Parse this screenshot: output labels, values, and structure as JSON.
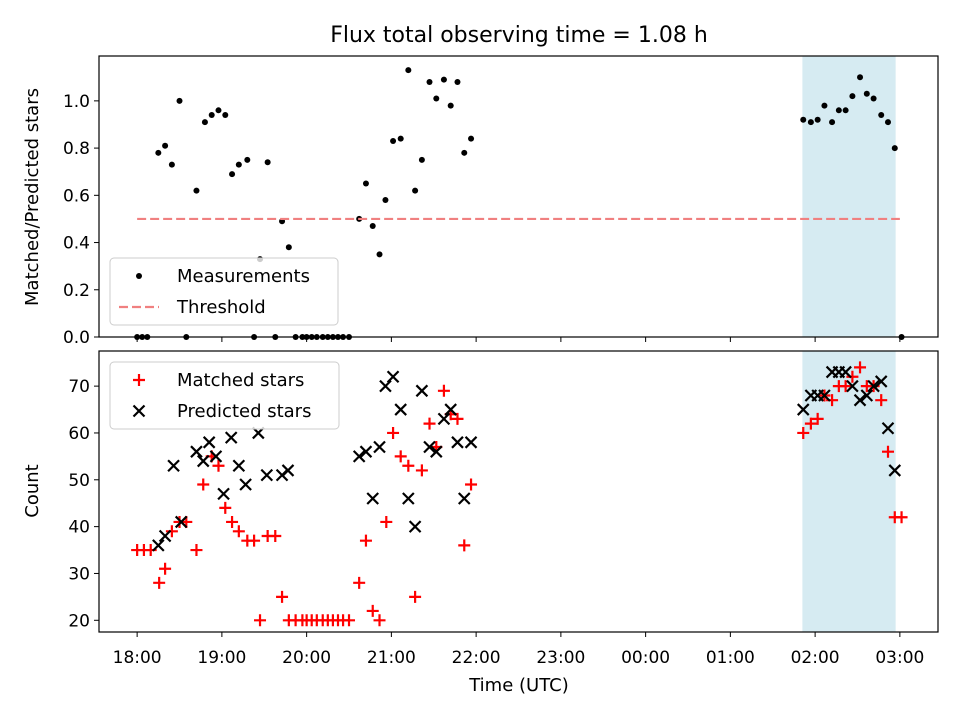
{
  "title": "Flux total observing time = 1.08 h",
  "xlabel": "Time (UTC)",
  "x_tick_labels": [
    "18:00",
    "19:00",
    "20:00",
    "21:00",
    "22:00",
    "23:00",
    "00:00",
    "01:00",
    "02:00",
    "03:00"
  ],
  "colors": {
    "measurements": "#000000",
    "threshold": "#f08080",
    "matched": "#ff0000",
    "predicted": "#000000",
    "span_fill": "#add8e6"
  },
  "chart_data": [
    {
      "type": "scatter",
      "ylabel": "Matched/Predicted stars",
      "xlim": [
        -0.45,
        9.45
      ],
      "ylim": [
        0,
        1.19
      ],
      "y_ticks": [
        0.0,
        0.2,
        0.4,
        0.6,
        0.8,
        1.0
      ],
      "y_tick_labels": [
        "0.0",
        "0.2",
        "0.4",
        "0.6",
        "0.8",
        "1.0"
      ],
      "shaded_span": [
        7.85,
        8.95
      ],
      "legend": {
        "position": "lower-left",
        "entries": [
          "Measurements",
          "Threshold"
        ]
      },
      "series": [
        {
          "name": "Measurements",
          "marker": "dot",
          "points": [
            [
              0.0,
              0.0
            ],
            [
              0.06,
              0.0
            ],
            [
              0.12,
              0.0
            ],
            [
              0.25,
              0.78
            ],
            [
              0.33,
              0.81
            ],
            [
              0.41,
              0.73
            ],
            [
              0.5,
              1.0
            ],
            [
              0.58,
              0.0
            ],
            [
              0.7,
              0.62
            ],
            [
              0.8,
              0.91
            ],
            [
              0.88,
              0.94
            ],
            [
              0.96,
              0.96
            ],
            [
              1.04,
              0.94
            ],
            [
              1.12,
              0.69
            ],
            [
              1.2,
              0.73
            ],
            [
              1.3,
              0.75
            ],
            [
              1.38,
              0.0
            ],
            [
              1.45,
              0.33
            ],
            [
              1.54,
              0.74
            ],
            [
              1.63,
              0.0
            ],
            [
              1.71,
              0.49
            ],
            [
              1.79,
              0.38
            ],
            [
              1.87,
              0.0
            ],
            [
              1.95,
              0.0
            ],
            [
              2.0,
              0.0
            ],
            [
              2.06,
              0.0
            ],
            [
              2.12,
              0.0
            ],
            [
              2.19,
              0.0
            ],
            [
              2.25,
              0.0
            ],
            [
              2.31,
              0.0
            ],
            [
              2.37,
              0.0
            ],
            [
              2.43,
              0.0
            ],
            [
              2.5,
              0.0
            ],
            [
              2.62,
              0.5
            ],
            [
              2.7,
              0.65
            ],
            [
              2.78,
              0.47
            ],
            [
              2.86,
              0.35
            ],
            [
              2.93,
              0.58
            ],
            [
              3.02,
              0.83
            ],
            [
              3.11,
              0.84
            ],
            [
              3.2,
              1.13
            ],
            [
              3.28,
              0.62
            ],
            [
              3.36,
              0.75
            ],
            [
              3.45,
              1.08
            ],
            [
              3.53,
              1.01
            ],
            [
              3.62,
              1.09
            ],
            [
              3.7,
              0.98
            ],
            [
              3.78,
              1.08
            ],
            [
              3.86,
              0.78
            ],
            [
              3.94,
              0.84
            ],
            [
              7.86,
              0.92
            ],
            [
              7.95,
              0.91
            ],
            [
              8.03,
              0.92
            ],
            [
              8.11,
              0.98
            ],
            [
              8.2,
              0.91
            ],
            [
              8.28,
              0.96
            ],
            [
              8.36,
              0.96
            ],
            [
              8.44,
              1.02
            ],
            [
              8.53,
              1.1
            ],
            [
              8.61,
              1.03
            ],
            [
              8.69,
              1.01
            ],
            [
              8.78,
              0.94
            ],
            [
              8.86,
              0.91
            ],
            [
              8.94,
              0.8
            ],
            [
              9.02,
              0.0
            ]
          ]
        },
        {
          "name": "Threshold",
          "style": "dashed",
          "points": [
            [
              0.0,
              0.5
            ],
            [
              9.0,
              0.5
            ]
          ]
        }
      ]
    },
    {
      "type": "scatter",
      "ylabel": "Count",
      "xlim": [
        -0.45,
        9.45
      ],
      "ylim": [
        17.5,
        77.5
      ],
      "y_ticks": [
        20,
        30,
        40,
        50,
        60,
        70
      ],
      "y_tick_labels": [
        "20",
        "30",
        "40",
        "50",
        "60",
        "70"
      ],
      "shaded_span": [
        7.85,
        8.95
      ],
      "legend": {
        "position": "upper-left",
        "entries": [
          "Matched stars",
          "Predicted stars"
        ]
      },
      "series": [
        {
          "name": "Matched stars",
          "marker": "plus",
          "points": [
            [
              0.0,
              35
            ],
            [
              0.08,
              35
            ],
            [
              0.16,
              35
            ],
            [
              0.26,
              28
            ],
            [
              0.33,
              31
            ],
            [
              0.41,
              39
            ],
            [
              0.5,
              41
            ],
            [
              0.58,
              41
            ],
            [
              0.7,
              35
            ],
            [
              0.78,
              49
            ],
            [
              0.88,
              55
            ],
            [
              0.96,
              53
            ],
            [
              1.04,
              44
            ],
            [
              1.12,
              41
            ],
            [
              1.2,
              39
            ],
            [
              1.3,
              37
            ],
            [
              1.38,
              37
            ],
            [
              1.45,
              20
            ],
            [
              1.54,
              38
            ],
            [
              1.63,
              38
            ],
            [
              1.71,
              25
            ],
            [
              1.79,
              20
            ],
            [
              1.87,
              20
            ],
            [
              1.95,
              20
            ],
            [
              2.0,
              20
            ],
            [
              2.06,
              20
            ],
            [
              2.12,
              20
            ],
            [
              2.19,
              20
            ],
            [
              2.25,
              20
            ],
            [
              2.31,
              20
            ],
            [
              2.37,
              20
            ],
            [
              2.43,
              20
            ],
            [
              2.5,
              20
            ],
            [
              2.62,
              28
            ],
            [
              2.7,
              37
            ],
            [
              2.78,
              22
            ],
            [
              2.86,
              20
            ],
            [
              2.94,
              41
            ],
            [
              3.02,
              60
            ],
            [
              3.11,
              55
            ],
            [
              3.2,
              53
            ],
            [
              3.28,
              25
            ],
            [
              3.36,
              52
            ],
            [
              3.45,
              62
            ],
            [
              3.53,
              57
            ],
            [
              3.62,
              69
            ],
            [
              3.7,
              64
            ],
            [
              3.78,
              63
            ],
            [
              3.86,
              36
            ],
            [
              3.94,
              49
            ],
            [
              7.86,
              60
            ],
            [
              7.95,
              62
            ],
            [
              8.03,
              63
            ],
            [
              8.11,
              68
            ],
            [
              8.2,
              67
            ],
            [
              8.28,
              70
            ],
            [
              8.36,
              70
            ],
            [
              8.44,
              72
            ],
            [
              8.53,
              74
            ],
            [
              8.61,
              70
            ],
            [
              8.69,
              70
            ],
            [
              8.78,
              67
            ],
            [
              8.86,
              56
            ],
            [
              8.94,
              42
            ],
            [
              9.02,
              42
            ]
          ]
        },
        {
          "name": "Predicted stars",
          "marker": "x",
          "points": [
            [
              0.25,
              36
            ],
            [
              0.33,
              38
            ],
            [
              0.43,
              53
            ],
            [
              0.52,
              41
            ],
            [
              0.7,
              56
            ],
            [
              0.78,
              54
            ],
            [
              0.85,
              58
            ],
            [
              0.93,
              55
            ],
            [
              1.02,
              47
            ],
            [
              1.11,
              59
            ],
            [
              1.2,
              53
            ],
            [
              1.28,
              49
            ],
            [
              1.43,
              60
            ],
            [
              1.53,
              51
            ],
            [
              1.71,
              51
            ],
            [
              1.78,
              52
            ],
            [
              2.62,
              55
            ],
            [
              2.7,
              56
            ],
            [
              2.78,
              46
            ],
            [
              2.86,
              57
            ],
            [
              2.93,
              70
            ],
            [
              3.02,
              72
            ],
            [
              3.11,
              65
            ],
            [
              3.2,
              46
            ],
            [
              3.28,
              40
            ],
            [
              3.36,
              69
            ],
            [
              3.45,
              57
            ],
            [
              3.53,
              56
            ],
            [
              3.62,
              63
            ],
            [
              3.7,
              65
            ],
            [
              3.78,
              58
            ],
            [
              3.86,
              46
            ],
            [
              3.94,
              58
            ],
            [
              7.86,
              65
            ],
            [
              7.95,
              68
            ],
            [
              8.03,
              68
            ],
            [
              8.11,
              68
            ],
            [
              8.2,
              73
            ],
            [
              8.28,
              73
            ],
            [
              8.36,
              73
            ],
            [
              8.44,
              70
            ],
            [
              8.53,
              67
            ],
            [
              8.61,
              68
            ],
            [
              8.69,
              70
            ],
            [
              8.78,
              71
            ],
            [
              8.86,
              61
            ],
            [
              8.94,
              52
            ]
          ]
        }
      ]
    }
  ]
}
